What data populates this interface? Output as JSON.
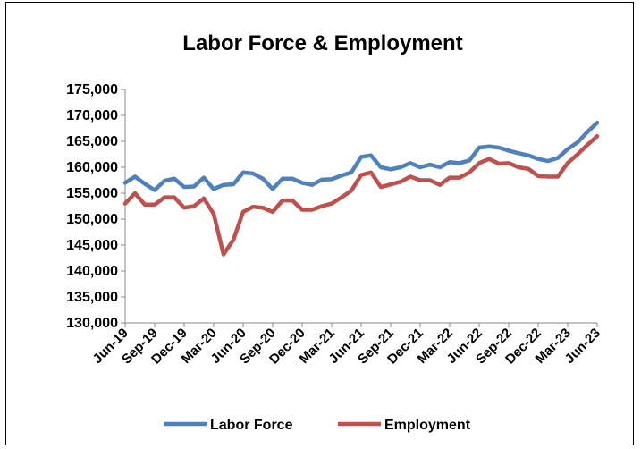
{
  "chart_data": {
    "type": "line",
    "title": "Labor Force & Employment",
    "xlabel": "",
    "ylabel": "",
    "ylim": [
      130000,
      175000
    ],
    "y_ticks": [
      "130,000",
      "135,000",
      "140,000",
      "145,000",
      "150,000",
      "155,000",
      "160,000",
      "165,000",
      "170,000",
      "175,000"
    ],
    "y_tick_values": [
      130000,
      135000,
      140000,
      145000,
      150000,
      155000,
      160000,
      165000,
      170000,
      175000
    ],
    "x_tick_labels": [
      "Jun-19",
      "Sep-19",
      "Dec-19",
      "Mar-20",
      "Jun-20",
      "Sep-20",
      "Dec-20",
      "Mar-21",
      "Jun-21",
      "Sep-21",
      "Dec-21",
      "Mar-22",
      "Jun-22",
      "Sep-22",
      "Dec-22",
      "Mar-23",
      "Jun-23"
    ],
    "grid": false,
    "legend_position": "bottom",
    "x": [
      "Jun-19",
      "Jul-19",
      "Aug-19",
      "Sep-19",
      "Oct-19",
      "Nov-19",
      "Dec-19",
      "Jan-20",
      "Feb-20",
      "Mar-20",
      "Apr-20",
      "May-20",
      "Jun-20",
      "Jul-20",
      "Aug-20",
      "Sep-20",
      "Oct-20",
      "Nov-20",
      "Dec-20",
      "Jan-21",
      "Feb-21",
      "Mar-21",
      "Apr-21",
      "May-21",
      "Jun-21",
      "Jul-21",
      "Aug-21",
      "Sep-21",
      "Oct-21",
      "Nov-21",
      "Dec-21",
      "Jan-22",
      "Feb-22",
      "Mar-22",
      "Apr-22",
      "May-22",
      "Jun-22",
      "Jul-22",
      "Aug-22",
      "Sep-22",
      "Oct-22",
      "Nov-22",
      "Dec-22",
      "Jan-23",
      "Feb-23",
      "Mar-23",
      "Apr-23",
      "May-23",
      "Jun-23"
    ],
    "series": [
      {
        "name": "Labor Force",
        "color": "#4F81BD",
        "values": [
          157000,
          158200,
          156800,
          155600,
          157400,
          157800,
          156200,
          156300,
          158000,
          155800,
          156600,
          156700,
          159000,
          158800,
          157800,
          155800,
          157800,
          157800,
          157000,
          156600,
          157600,
          157700,
          158400,
          159000,
          162000,
          162300,
          160000,
          159600,
          160000,
          160800,
          160000,
          160500,
          160000,
          161000,
          160800,
          161300,
          163800,
          164000,
          163800,
          163200,
          162700,
          162300,
          161600,
          161200,
          161800,
          163500,
          164800,
          166800,
          168600
        ]
      },
      {
        "name": "Employment",
        "color": "#C0504D",
        "values": [
          153000,
          155000,
          152800,
          152800,
          154200,
          154200,
          152200,
          152500,
          154000,
          151000,
          143200,
          146000,
          151400,
          152400,
          152200,
          151400,
          153600,
          153600,
          151800,
          151800,
          152500,
          153000,
          154200,
          155500,
          158500,
          159000,
          156200,
          156700,
          157200,
          158200,
          157500,
          157500,
          156600,
          158000,
          158000,
          159000,
          160800,
          161600,
          160700,
          160800,
          160000,
          159700,
          158300,
          158200,
          158200,
          160800,
          162500,
          164300,
          166000
        ]
      }
    ]
  }
}
